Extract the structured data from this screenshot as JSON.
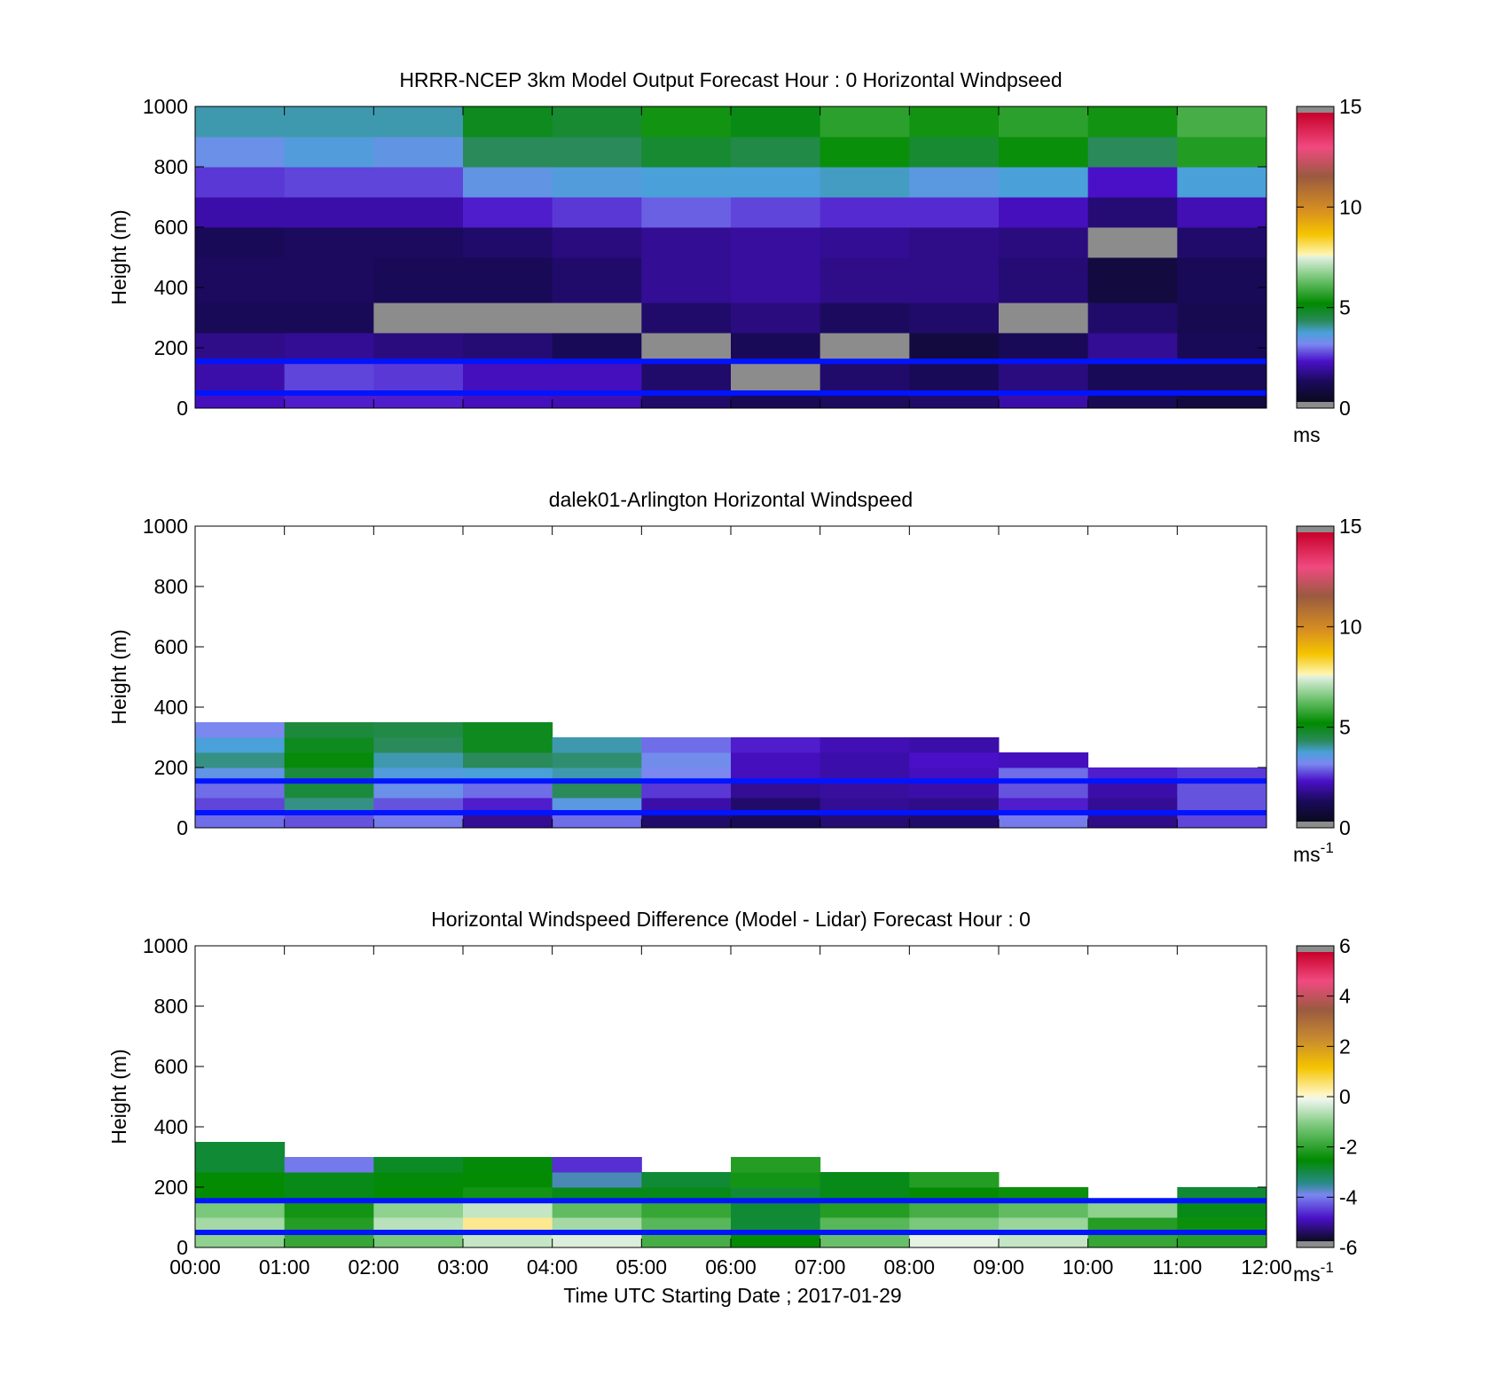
{
  "chart_data": [
    {
      "type": "heatmap",
      "title": "HRRR-NCEP 3km Model Output   Forecast Hour : 0 Horizontal Windpseed",
      "ylabel": "Height (m)",
      "xlabel": "",
      "xlim": [
        0,
        12
      ],
      "ylim": [
        0,
        1000
      ],
      "yticks": [
        "0",
        "200",
        "400",
        "600",
        "800",
        "1000"
      ],
      "xticks": [],
      "colorbar": {
        "min": 0,
        "max": 15,
        "ticks": [
          "0",
          "5",
          "10",
          "15"
        ],
        "unit": "ms",
        "unit_sup": ""
      },
      "ref_lines_m": [
        50,
        155
      ],
      "x_edges": [
        0,
        1,
        2,
        3,
        4,
        5,
        6,
        7,
        8,
        9,
        10,
        11,
        12
      ],
      "y_edges": [
        0,
        50,
        150,
        250,
        350,
        500,
        600,
        700,
        800,
        900,
        1000
      ],
      "values": [
        [
          2.0,
          2.2,
          2.2,
          2.0,
          1.9,
          1.2,
          1.0,
          1.1,
          1.2,
          1.8,
          1.0,
          0.6
        ],
        [
          1.8,
          2.5,
          2.4,
          2.0,
          2.0,
          1.2,
          0.1,
          1.2,
          1.0,
          1.4,
          1.0,
          1.0
        ],
        [
          1.5,
          1.6,
          1.4,
          1.3,
          1.0,
          0.1,
          1.0,
          0.1,
          0.6,
          1.0,
          1.6,
          1.0
        ],
        [
          1.0,
          1.0,
          0.1,
          0.1,
          0.1,
          1.2,
          1.4,
          1.1,
          1.2,
          0.1,
          1.2,
          0.9
        ],
        [
          1.1,
          1.1,
          1.0,
          1.0,
          1.2,
          1.6,
          1.7,
          1.5,
          1.5,
          1.3,
          0.6,
          1.0
        ],
        [
          1.0,
          1.1,
          1.1,
          1.2,
          1.4,
          1.6,
          1.7,
          1.6,
          1.5,
          1.4,
          0.5,
          1.2
        ],
        [
          1.8,
          1.8,
          1.8,
          2.2,
          2.4,
          2.7,
          2.5,
          2.3,
          2.3,
          2.0,
          1.3,
          1.9
        ],
        [
          2.4,
          2.5,
          2.5,
          3.3,
          3.5,
          3.6,
          3.6,
          3.7,
          3.4,
          3.6,
          2.1,
          3.6
        ],
        [
          3.2,
          3.5,
          3.3,
          4.2,
          4.2,
          4.6,
          4.4,
          5.2,
          4.6,
          5.2,
          4.2,
          5.5
        ],
        [
          3.8,
          3.8,
          3.8,
          4.8,
          4.6,
          5.3,
          4.9,
          5.6,
          5.3,
          5.6,
          5.3,
          5.9
        ]
      ],
      "missing_cells": [
        [
          3,
          2
        ],
        [
          3,
          3
        ],
        [
          3,
          4
        ],
        [
          2,
          5
        ],
        [
          2,
          7
        ],
        [
          1,
          6
        ],
        [
          3,
          9
        ],
        [
          5,
          10
        ]
      ]
    },
    {
      "type": "heatmap",
      "title": "dalek01-Arlington  Horizontal Windspeed",
      "ylabel": "Height (m)",
      "xlabel": "",
      "xlim": [
        0,
        12
      ],
      "ylim": [
        0,
        1000
      ],
      "yticks": [
        "0",
        "200",
        "400",
        "600",
        "800",
        "1000"
      ],
      "xticks": [],
      "colorbar": {
        "min": 0,
        "max": 15,
        "ticks": [
          "0",
          "5",
          "10",
          "15"
        ],
        "unit": "ms",
        "unit_sup": "-1"
      },
      "ref_lines_m": [
        50,
        155
      ],
      "x_edges": [
        0,
        1,
        2,
        3,
        4,
        5,
        6,
        7,
        8,
        9,
        10,
        11,
        12
      ],
      "y_edges": [
        0,
        50,
        100,
        150,
        200,
        250,
        300,
        350
      ],
      "values": [
        [
          2.8,
          2.6,
          2.9,
          1.6,
          2.8,
          1.2,
          1.0,
          1.3,
          1.2,
          2.9,
          1.5,
          2.5
        ],
        [
          2.5,
          4.0,
          2.6,
          2.2,
          3.4,
          1.8,
          1.2,
          1.6,
          1.5,
          2.2,
          1.6,
          2.6
        ],
        [
          2.8,
          4.5,
          3.2,
          2.8,
          4.2,
          2.4,
          1.6,
          1.7,
          1.8,
          2.6,
          1.8,
          2.6
        ],
        [
          3.3,
          4.5,
          3.5,
          3.6,
          3.8,
          3.0,
          2.0,
          1.8,
          2.0,
          2.8,
          2.2,
          2.4
        ],
        [
          4.0,
          5.0,
          3.8,
          4.2,
          4.1,
          3.1,
          2.0,
          1.8,
          2.1,
          2.0,
          null,
          null
        ],
        [
          3.6,
          4.8,
          4.2,
          4.8,
          3.8,
          2.8,
          2.2,
          1.9,
          1.8,
          null,
          null,
          null
        ],
        [
          3.0,
          4.5,
          4.4,
          4.8,
          null,
          null,
          null,
          null,
          null,
          null,
          null,
          null
        ]
      ],
      "missing_cells": []
    },
    {
      "type": "heatmap",
      "title": "Horizontal Windspeed Difference (Model - Lidar) Forecast Hour : 0",
      "ylabel": "Height (m)",
      "xlabel": "Time UTC  Starting Date ; 2017-01-29",
      "xlim": [
        0,
        12
      ],
      "ylim": [
        0,
        1000
      ],
      "yticks": [
        "0",
        "200",
        "400",
        "600",
        "800",
        "1000"
      ],
      "xticks": [
        "00:00",
        "01:00",
        "02:00",
        "03:00",
        "04:00",
        "05:00",
        "06:00",
        "07:00",
        "08:00",
        "09:00",
        "10:00",
        "11:00",
        "12:00"
      ],
      "colorbar": {
        "min": -6,
        "max": 6,
        "ticks": [
          "-6",
          "-4",
          "-2",
          "0",
          "2",
          "4",
          "6"
        ],
        "unit": "ms",
        "unit_sup": "-1"
      },
      "ref_lines_m": [
        50,
        155
      ],
      "x_edges": [
        0,
        1,
        2,
        3,
        4,
        5,
        6,
        7,
        8,
        9,
        10,
        11,
        12
      ],
      "y_edges": [
        0,
        50,
        100,
        150,
        200,
        250,
        300,
        350
      ],
      "values": [
        [
          -1.0,
          -2.0,
          -1.2,
          -0.5,
          -0.3,
          -1.8,
          -2.6,
          -1.4,
          -0.2,
          -0.5,
          -2.0,
          -2.2
        ],
        [
          -0.8,
          -2.2,
          -0.6,
          0.4,
          -0.8,
          -1.6,
          -3.0,
          -1.6,
          -1.2,
          -0.9,
          -2.2,
          -2.5
        ],
        [
          -1.2,
          -2.4,
          -1.0,
          -0.5,
          -1.5,
          -2.0,
          -3.0,
          -2.2,
          -1.8,
          -1.5,
          -1.0,
          -2.8
        ],
        [
          -2.6,
          -2.8,
          -2.6,
          -2.4,
          -2.8,
          -2.8,
          -3.0,
          -2.8,
          -2.6,
          -2.5,
          null,
          -3.0
        ],
        [
          -2.6,
          -2.8,
          -2.7,
          -2.6,
          -3.8,
          -3.0,
          -2.4,
          -2.8,
          -2.2,
          null,
          null,
          null
        ],
        [
          -3.0,
          -4.2,
          -2.9,
          -2.7,
          -4.8,
          null,
          -2.2,
          null,
          null,
          null,
          null,
          null
        ],
        [
          -3.0,
          null,
          null,
          null,
          null,
          null,
          null,
          null,
          null,
          null,
          null,
          null
        ]
      ],
      "missing_cells": []
    }
  ]
}
